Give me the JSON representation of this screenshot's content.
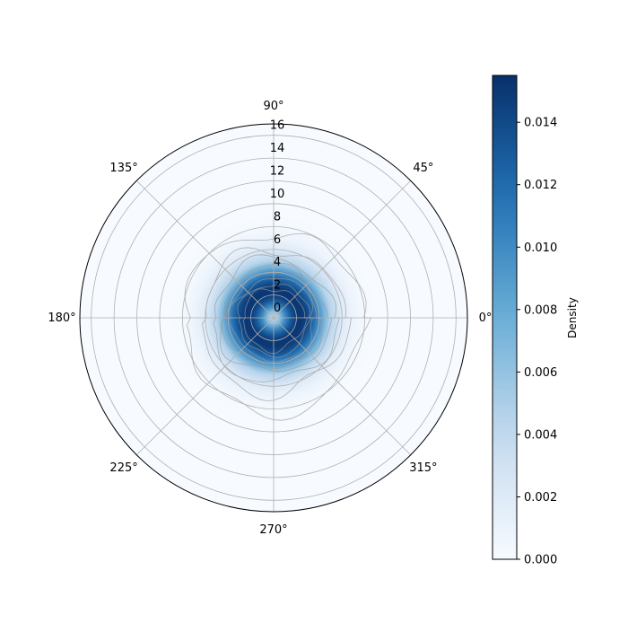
{
  "chart_data": {
    "type": "heatmap",
    "projection": "polar",
    "title": "",
    "angular_ticks": [
      "0°",
      "45°",
      "90°",
      "135°",
      "180°",
      "225°",
      "270°",
      "315°"
    ],
    "radial_ticks": [
      "0",
      "2",
      "4",
      "6",
      "8",
      "10",
      "12",
      "14",
      "16"
    ],
    "rlim": [
      0,
      17
    ],
    "grid": true,
    "colormap": "Blues",
    "colors": {
      "low": "#f7fbff",
      "mid": "#6baed6",
      "high": "#08306b",
      "contour": "#9a9a9a",
      "grid": "#b0b0b0"
    },
    "colorbar": {
      "label": "Density",
      "ticks": [
        "0.000",
        "0.002",
        "0.004",
        "0.006",
        "0.008",
        "0.010",
        "0.012",
        "0.014"
      ],
      "range": [
        0,
        0.0155
      ]
    },
    "density_center": {
      "r": 0,
      "theta_deg": 0
    },
    "density_profile": [
      {
        "r": 0.0,
        "density": 0.0035
      },
      {
        "r": 0.5,
        "density": 0.006
      },
      {
        "r": 1.0,
        "density": 0.01
      },
      {
        "r": 1.5,
        "density": 0.013
      },
      {
        "r": 2.0,
        "density": 0.015
      },
      {
        "r": 2.5,
        "density": 0.015
      },
      {
        "r": 3.0,
        "density": 0.014
      },
      {
        "r": 3.5,
        "density": 0.012
      },
      {
        "r": 4.0,
        "density": 0.0095
      },
      {
        "r": 4.5,
        "density": 0.007
      },
      {
        "r": 5.0,
        "density": 0.0045
      },
      {
        "r": 6.0,
        "density": 0.002
      },
      {
        "r": 7.0,
        "density": 0.0008
      },
      {
        "r": 8.0,
        "density": 0.0002
      },
      {
        "r": 9.0,
        "density": 0.0
      }
    ],
    "contour_levels": [
      0.0005,
      0.002,
      0.004,
      0.006,
      0.008,
      0.01,
      0.012,
      0.014
    ],
    "contour_radius_at_level": [
      7.6,
      6.1,
      5.2,
      4.5,
      4.0,
      3.5,
      3.0,
      2.6
    ]
  }
}
